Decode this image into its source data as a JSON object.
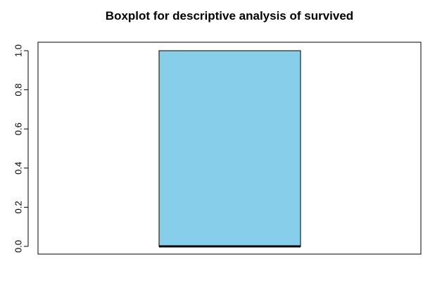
{
  "chart_data": {
    "type": "boxplot",
    "title": "Boxplot for descriptive analysis of survived",
    "xlabel": "",
    "ylabel": "",
    "ylim": [
      0,
      1
    ],
    "y_ticks": [
      "0.0",
      "0.2",
      "0.4",
      "0.6",
      "0.8",
      "1.0"
    ],
    "grid": false,
    "legend": "none",
    "boxes": [
      {
        "min": 0,
        "q1": 0,
        "median": 0,
        "q3": 1,
        "max": 1,
        "fill_color": "#87CEEB"
      }
    ]
  },
  "colors": {
    "box_fill": "#87CEEB",
    "box_border": "#000000",
    "median_line": "#000000",
    "background": "#ffffff"
  }
}
